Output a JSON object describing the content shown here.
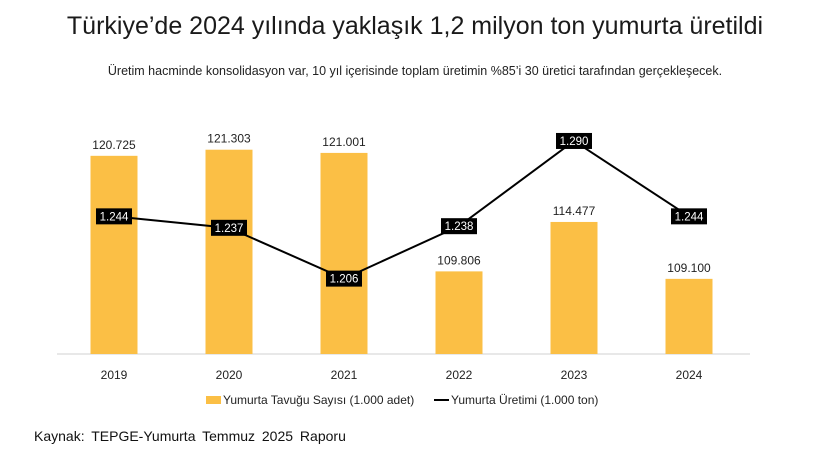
{
  "title": "Türkiye’de 2024 yılında yaklaşık 1,2 milyon ton yumurta üretildi",
  "subtitle": "Üretim hacminde konsolidasyon var, 10 yıl içerisinde toplam üretimin %85’i 30 üretici tarafından gerçekleşecek.",
  "source": "Kaynak: TEPGE-Yumurta  Temmuz  2025 Raporu",
  "chart_data": {
    "type": "bar+line",
    "categories": [
      "2019",
      "2020",
      "2021",
      "2022",
      "2023",
      "2024"
    ],
    "series": [
      {
        "name": "Yumurta Tavuğu Sayısı (1.000 adet)",
        "type": "bar",
        "axis": "primary",
        "color": "#FBBF45",
        "values": [
          120.725,
          121.303,
          121.001,
          109.806,
          114.477,
          109.1
        ],
        "labels": [
          "120.725",
          "121.303",
          "121.001",
          "109.806",
          "114.477",
          "109.100"
        ]
      },
      {
        "name": "Yumurta Üretimi (1.000 ton)",
        "type": "line",
        "axis": "secondary",
        "color": "#000000",
        "values": [
          1.244,
          1.237,
          1.206,
          1.238,
          1.29,
          1.244
        ],
        "labels": [
          "1.244",
          "1.237",
          "1.206",
          "1.238",
          "1.290",
          "1.244"
        ]
      }
    ],
    "ylim": [
      102,
      126
    ],
    "y2lim": [
      1.16,
      1.315
    ],
    "grid": false,
    "legend": "bottom"
  }
}
